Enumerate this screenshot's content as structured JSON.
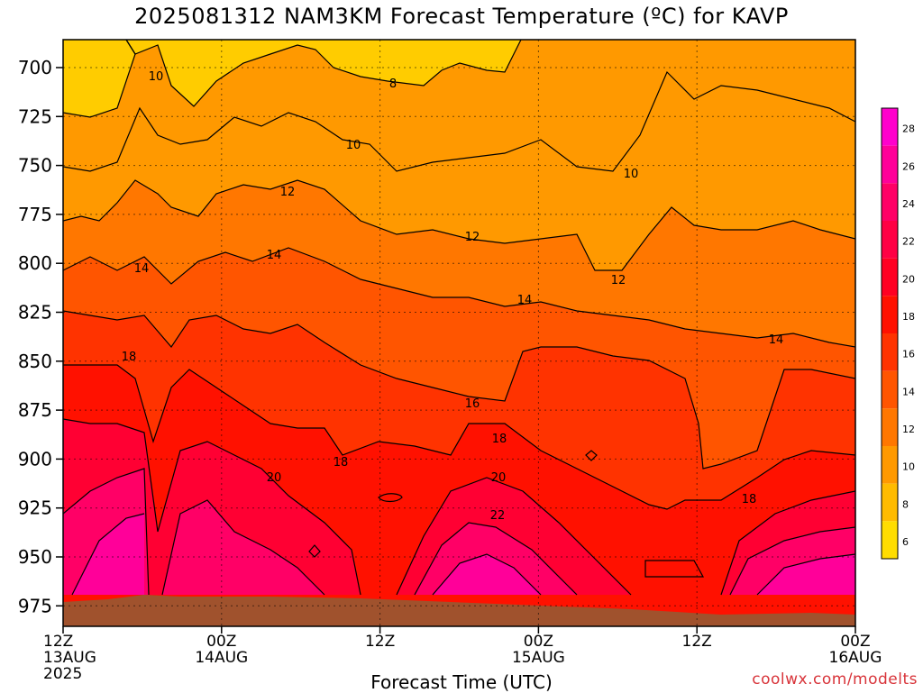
{
  "title": "2025081312 NAM3KM Forecast Temperature (ºC) for KAVP",
  "xaxis_label": "Forecast Time (UTC)",
  "credit": "coolwx.com/modelts",
  "yaxis": {
    "ticks": [
      "700",
      "725",
      "750",
      "775",
      "800",
      "825",
      "850",
      "875",
      "900",
      "925",
      "950",
      "975"
    ]
  },
  "xaxis": {
    "ticks": [
      {
        "l1": "12Z",
        "l2": "13AUG",
        "l3": "2025"
      },
      {
        "l1": "00Z",
        "l2": "14AUG",
        "l3": ""
      },
      {
        "l1": "12Z",
        "l2": "",
        "l3": ""
      },
      {
        "l1": "00Z",
        "l2": "15AUG",
        "l3": ""
      },
      {
        "l1": "12Z",
        "l2": "",
        "l3": ""
      },
      {
        "l1": "00Z",
        "l2": "16AUG",
        "l3": ""
      }
    ]
  },
  "colorbar": {
    "labels": [
      "28",
      "26",
      "24",
      "22",
      "20",
      "18",
      "16",
      "14",
      "12",
      "10",
      "8",
      "6"
    ],
    "colors": [
      "#ff00cc",
      "#ff0099",
      "#ff0066",
      "#ff0044",
      "#ff0022",
      "#ff1100",
      "#ff3300",
      "#ff5500",
      "#ff7700",
      "#ff9900",
      "#ffbb00",
      "#ffdd00"
    ]
  },
  "contour_labels": [
    "10",
    "8",
    "10",
    "10",
    "12",
    "12",
    "12",
    "14",
    "14",
    "14",
    "14",
    "18",
    "16",
    "18",
    "18",
    "20",
    "20",
    "22",
    "18"
  ]
}
